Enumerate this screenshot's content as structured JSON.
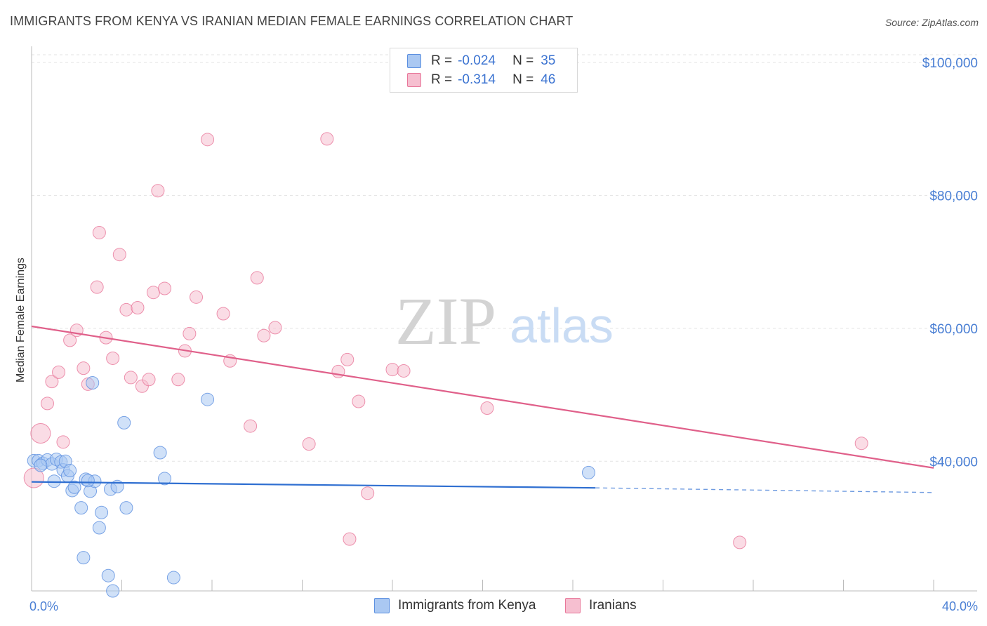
{
  "title": "IMMIGRANTS FROM KENYA VS IRANIAN MEDIAN FEMALE EARNINGS CORRELATION CHART",
  "source": "Source: ZipAtlas.com",
  "watermark": {
    "zip": "ZIP",
    "atlas": "atlas"
  },
  "legend": {
    "rows": [
      {
        "r_label": "R =",
        "r_value": "-0.024",
        "n_label": "N =",
        "n_value": "35"
      },
      {
        "r_label": "R =",
        "r_value": "-0.314",
        "n_label": "N =",
        "n_value": "46"
      }
    ]
  },
  "chart_data": {
    "type": "scatter",
    "title": "IMMIGRANTS FROM KENYA VS IRANIAN MEDIAN FEMALE EARNINGS CORRELATION CHART",
    "xlabel": "",
    "ylabel": "Median Female Earnings",
    "xlim": [
      0,
      40
    ],
    "ylim": [
      20500,
      102000
    ],
    "y_ticks": [
      40000,
      60000,
      80000,
      100000
    ],
    "y_tick_labels": [
      "$40,000",
      "$60,000",
      "$80,000",
      "$100,000"
    ],
    "x_tick_labels": [
      "0.0%",
      "40.0%"
    ],
    "grid": true,
    "series": [
      {
        "name": "Immigrants from Kenya",
        "color": "#5b8fe0",
        "fill": "#aac8f2",
        "r": -0.024,
        "n": 35,
        "trend": {
          "x0": 0,
          "y0": 36900,
          "x1": 25,
          "y1": 36000,
          "dashed_to_x": 40,
          "dashed_to_y": 35300
        },
        "points": [
          [
            0.1,
            40100
          ],
          [
            0.3,
            40100
          ],
          [
            0.5,
            39700
          ],
          [
            0.7,
            40200
          ],
          [
            0.9,
            39600
          ],
          [
            1.1,
            40300
          ],
          [
            1.3,
            39900
          ],
          [
            1.0,
            37000
          ],
          [
            1.4,
            38700
          ],
          [
            1.5,
            40000
          ],
          [
            1.6,
            37800
          ],
          [
            1.7,
            38600
          ],
          [
            1.8,
            35600
          ],
          [
            1.9,
            36100
          ],
          [
            2.2,
            33000
          ],
          [
            2.3,
            25500
          ],
          [
            2.4,
            37300
          ],
          [
            2.6,
            35500
          ],
          [
            2.8,
            37000
          ],
          [
            2.7,
            51800
          ],
          [
            3.0,
            30000
          ],
          [
            3.1,
            32300
          ],
          [
            3.4,
            22800
          ],
          [
            3.5,
            35800
          ],
          [
            3.6,
            20500
          ],
          [
            3.8,
            36200
          ],
          [
            4.1,
            45800
          ],
          [
            4.2,
            33000
          ],
          [
            5.7,
            41300
          ],
          [
            5.9,
            37400
          ],
          [
            6.3,
            22500
          ],
          [
            7.8,
            49300
          ],
          [
            24.7,
            38300
          ],
          [
            0.4,
            39400
          ],
          [
            2.5,
            37100
          ]
        ]
      },
      {
        "name": "Iranians",
        "color": "#e8779a",
        "fill": "#f6bfd0",
        "r": -0.314,
        "n": 46,
        "trend": {
          "x0": 0,
          "y0": 60300,
          "x1": 40,
          "y1": 39000
        },
        "points": [
          [
            0.1,
            37500
          ],
          [
            0.4,
            44200
          ],
          [
            0.7,
            48700
          ],
          [
            0.9,
            52000
          ],
          [
            1.2,
            53400
          ],
          [
            1.4,
            42900
          ],
          [
            1.7,
            58200
          ],
          [
            2.0,
            59700
          ],
          [
            2.3,
            54000
          ],
          [
            2.5,
            51600
          ],
          [
            2.9,
            66200
          ],
          [
            3.0,
            74400
          ],
          [
            3.3,
            58600
          ],
          [
            3.6,
            55500
          ],
          [
            3.9,
            71100
          ],
          [
            4.2,
            62800
          ],
          [
            4.4,
            52600
          ],
          [
            4.7,
            63100
          ],
          [
            4.9,
            51300
          ],
          [
            5.2,
            52300
          ],
          [
            5.4,
            65400
          ],
          [
            5.6,
            80700
          ],
          [
            5.9,
            66000
          ],
          [
            6.5,
            52300
          ],
          [
            6.8,
            56600
          ],
          [
            7.0,
            59200
          ],
          [
            7.3,
            64700
          ],
          [
            7.8,
            88400
          ],
          [
            8.5,
            62200
          ],
          [
            8.8,
            55100
          ],
          [
            9.7,
            45300
          ],
          [
            10.0,
            67600
          ],
          [
            10.3,
            58900
          ],
          [
            10.8,
            60100
          ],
          [
            12.3,
            42600
          ],
          [
            13.1,
            88500
          ],
          [
            13.6,
            53500
          ],
          [
            14.0,
            55300
          ],
          [
            14.1,
            28300
          ],
          [
            14.5,
            49000
          ],
          [
            14.9,
            35200
          ],
          [
            16.0,
            53800
          ],
          [
            16.5,
            53600
          ],
          [
            20.2,
            48000
          ],
          [
            31.4,
            27800
          ],
          [
            36.8,
            42700
          ]
        ]
      }
    ]
  }
}
